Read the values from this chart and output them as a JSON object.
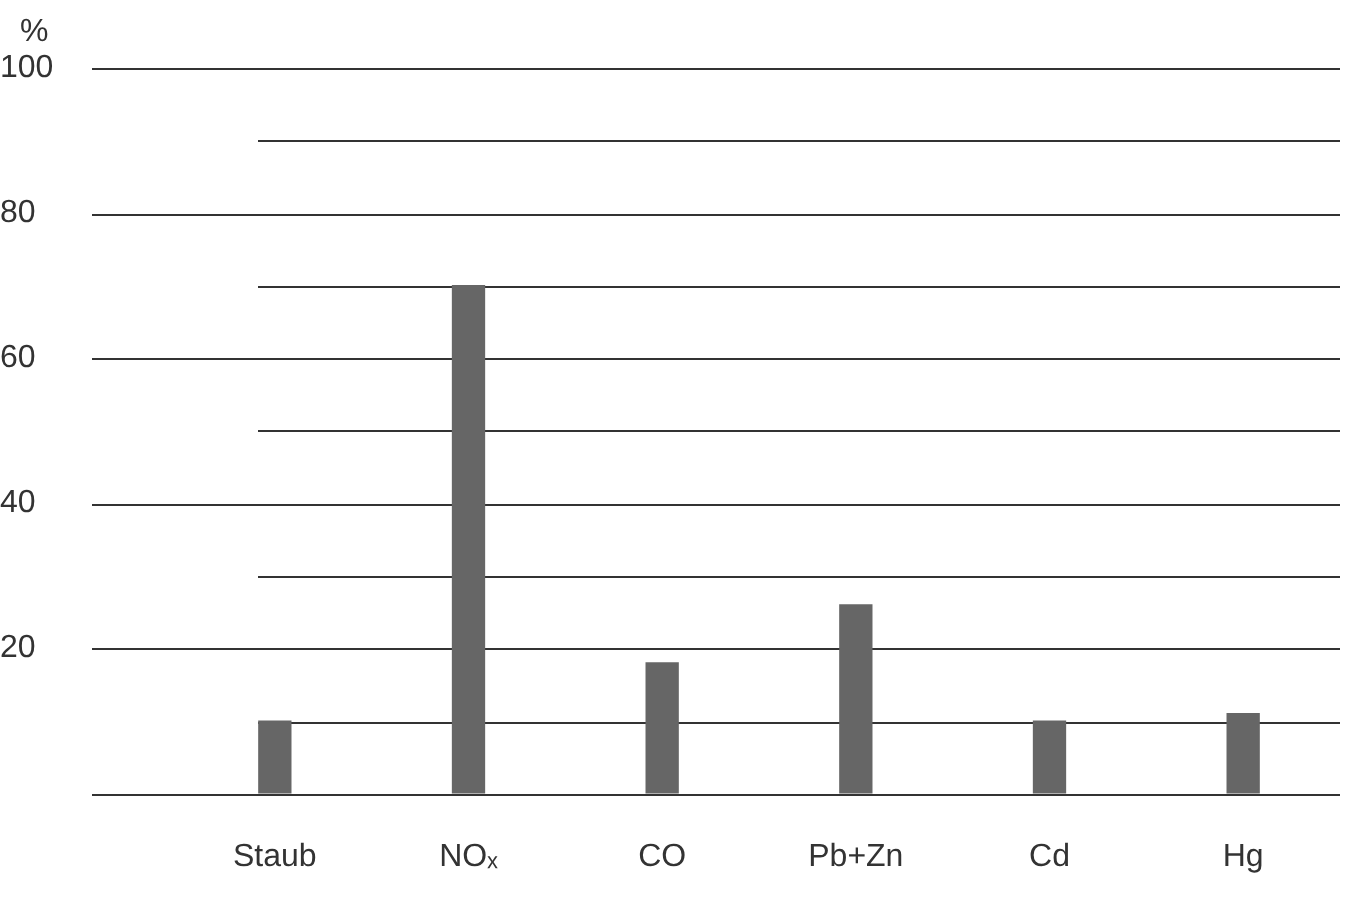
{
  "chart_data": {
    "type": "bar",
    "ylabel": "%",
    "categories": [
      "Staub",
      "NOₓ",
      "CO",
      "Pb+Zn",
      "Cd",
      "Hg"
    ],
    "values": [
      10,
      70,
      18,
      26,
      10,
      11
    ],
    "color": "#666666",
    "ylim": [
      0,
      100
    ],
    "yticks": [
      {
        "value": 0,
        "label": null
      },
      {
        "value": 10,
        "label": null
      },
      20,
      {
        "value": 30,
        "label": null
      },
      40,
      {
        "value": 50,
        "label": null
      },
      60,
      {
        "value": 70,
        "label": null
      },
      80,
      {
        "value": 90,
        "label": null
      },
      100
    ],
    "grid": true,
    "legend": false
  }
}
